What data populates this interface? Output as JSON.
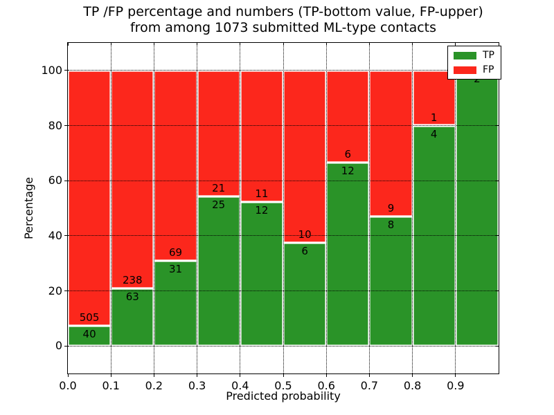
{
  "chart_data": {
    "type": "bar",
    "variant": "stacked-percentage",
    "title_lines": [
      "TP /FP percentage and numbers (TP-bottom value, FP-upper)",
      "from among 1073 submitted ML-type contacts"
    ],
    "title": "TP /FP percentage and numbers (TP-bottom value, FP-upper)\nfrom among 1073 submitted ML-type contacts",
    "xlabel": "Predicted probability",
    "ylabel": "Percentage",
    "total_contacts": 1073,
    "categories": [
      "0.0-0.1",
      "0.1-0.2",
      "0.2-0.3",
      "0.3-0.4",
      "0.4-0.5",
      "0.5-0.6",
      "0.6-0.7",
      "0.7-0.8",
      "0.8-0.9",
      "0.9-1.0"
    ],
    "bin_starts": [
      0.0,
      0.1,
      0.2,
      0.3,
      0.4,
      0.5,
      0.6,
      0.7,
      0.8,
      0.9
    ],
    "bin_width": 0.1,
    "series": [
      {
        "name": "TP",
        "color": "#2a9328",
        "values": [
          40,
          63,
          31,
          25,
          12,
          6,
          12,
          8,
          4,
          2
        ]
      },
      {
        "name": "FP",
        "color": "#fc271c",
        "values": [
          505,
          238,
          69,
          21,
          11,
          10,
          6,
          9,
          1,
          0
        ]
      }
    ],
    "tp_percentages": [
      7.3,
      20.9,
      31.0,
      54.3,
      52.2,
      37.5,
      66.7,
      47.1,
      80.0,
      100.0
    ],
    "x_ticks": [
      "0.0",
      "0.1",
      "0.2",
      "0.3",
      "0.4",
      "0.5",
      "0.6",
      "0.7",
      "0.8",
      "0.9"
    ],
    "y_ticks": [
      0,
      20,
      40,
      60,
      80,
      100
    ],
    "xlim": [
      0,
      1
    ],
    "ylim": [
      -10,
      110
    ],
    "grid": "dotted-black-on",
    "bar_edge_color": "#ffffff",
    "legend": {
      "position": "upper right",
      "entries": [
        "TP",
        "FP"
      ]
    }
  }
}
